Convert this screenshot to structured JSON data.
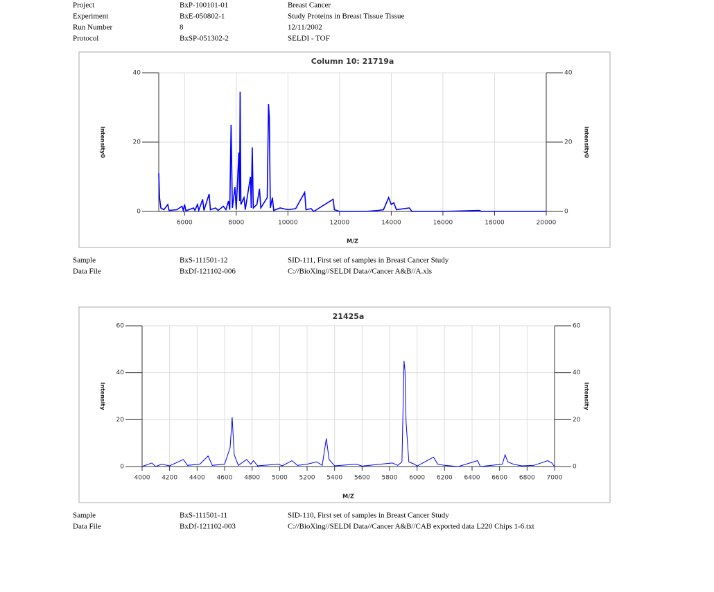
{
  "header": {
    "rows": [
      [
        "Project",
        "BxP-100101-01",
        "Breast Cancer"
      ],
      [
        "Experiment",
        "BxE-050802-1",
        "Study Proteins in Breast Tissue Tissue"
      ],
      [
        "Run Number",
        "8",
        "12/11/2002"
      ],
      [
        "Protocol",
        "BxSP-051302-2",
        "SELDI - TOF"
      ]
    ]
  },
  "chart_data": [
    {
      "type": "line",
      "title": "Column 10: 21719a",
      "x_label": "M/Z",
      "y_label": "Intensity0",
      "y2_label": "Intensity0",
      "x": [
        5000,
        5030,
        5080,
        5200,
        5350,
        5400,
        5700,
        5900,
        5950,
        6000,
        6050,
        6350,
        6400,
        6500,
        6550,
        6700,
        6750,
        6950,
        7000,
        7200,
        7300,
        7500,
        7600,
        7700,
        7750,
        7800,
        7850,
        7950,
        8000,
        8100,
        8130,
        8150,
        8180,
        8300,
        8350,
        8550,
        8580,
        8620,
        8660,
        8800,
        8900,
        8950,
        9200,
        9250,
        9280,
        9320,
        9400,
        9450,
        9700,
        10000,
        10300,
        10650,
        10700,
        10900,
        11000,
        11750,
        11800,
        12000,
        13000,
        13500,
        13700,
        13900,
        14000,
        14100,
        14200,
        14700,
        14800,
        16000,
        17400,
        17500,
        20000
      ],
      "series": [
        {
          "color": "#0000ff",
          "values": [
            11,
            4,
            1,
            0.5,
            2,
            0.3,
            0.5,
            1.5,
            0.3,
            2,
            0.2,
            1,
            0.3,
            2,
            0.3,
            3.5,
            0.3,
            5,
            0.5,
            1,
            0.3,
            1.5,
            0.5,
            3,
            0.5,
            25,
            1,
            7,
            0.5,
            17,
            3,
            34.5,
            2,
            4,
            0.5,
            10,
            1,
            18.5,
            1,
            2,
            6.5,
            1,
            4,
            31,
            27,
            1,
            4,
            0.3,
            1,
            0.5,
            0.8,
            5.5,
            0.5,
            0.8,
            0,
            3.5,
            0.5,
            0,
            0,
            0.3,
            0.5,
            4,
            2,
            2.5,
            0.5,
            1,
            0,
            0,
            0.3,
            0,
            0
          ]
        }
      ],
      "xlim": [
        5000,
        20000
      ],
      "xticks": [
        6000,
        8000,
        10000,
        12000,
        14000,
        16000,
        18000,
        20000
      ],
      "ylim": [
        0,
        40
      ],
      "yticks": [
        0,
        20,
        40
      ],
      "y2lim": [
        0,
        40
      ],
      "y2ticks": [
        0,
        20,
        40
      ],
      "grid": true
    },
    {
      "type": "line",
      "title": "21425a",
      "x_label": "M/Z",
      "y_label": "Intensity",
      "y2_label": "Intensity",
      "x": [
        4000,
        4070,
        4100,
        4140,
        4200,
        4300,
        4330,
        4420,
        4480,
        4510,
        4600,
        4640,
        4655,
        4670,
        4700,
        4760,
        4790,
        4810,
        4840,
        4990,
        5020,
        5090,
        5130,
        5200,
        5270,
        5310,
        5340,
        5360,
        5400,
        5560,
        5600,
        5820,
        5860,
        5890,
        5905,
        5912,
        5920,
        5940,
        5980,
        6000,
        6120,
        6150,
        6200,
        6300,
        6440,
        6460,
        6620,
        6640,
        6660,
        6700,
        6760,
        6850,
        6950,
        6980,
        7000
      ],
      "series": [
        {
          "color": "#0000ff",
          "values": [
            0,
            1.5,
            0,
            1,
            0.3,
            3,
            0.5,
            1,
            4.5,
            0.5,
            1,
            8,
            21,
            5,
            0.5,
            3,
            1,
            2.5,
            0.3,
            1,
            0.3,
            2.5,
            0.5,
            1,
            2,
            0.5,
            12,
            3,
            0.3,
            1,
            0.2,
            1.5,
            0.5,
            2,
            45,
            41,
            19,
            2,
            1,
            0.2,
            4,
            1,
            0.5,
            0,
            2.5,
            0,
            1,
            5,
            2,
            1,
            0.3,
            0.5,
            2.5,
            1.5,
            0
          ]
        }
      ],
      "xlim": [
        4000,
        7000
      ],
      "xticks": [
        4000,
        4200,
        4400,
        4600,
        4800,
        5000,
        5200,
        5400,
        5600,
        5800,
        6000,
        6200,
        6400,
        6600,
        6800,
        7000
      ],
      "ylim": [
        0,
        60
      ],
      "yticks": [
        0,
        20,
        40,
        60
      ],
      "y2lim": [
        0,
        60
      ],
      "y2ticks": [
        0,
        20,
        40,
        60
      ],
      "grid": true
    }
  ],
  "details": [
    {
      "rows": [
        [
          "Sample",
          "BxS-111501-12",
          "SID-111, First set of samples in Breast Cancer Study"
        ],
        [
          "Data File",
          "BxDf-121102-006",
          "C://BioXing//SELDI Data//Cancer A&B//A.xls"
        ]
      ]
    },
    {
      "rows": [
        [
          "Sample",
          "BxS-111501-11",
          "SID-110, First set of samples in Breast Cancer Study"
        ],
        [
          "Data File",
          "BxDf-121102-003",
          "C://BioXing//SELDI Data//Cancer A&B//CAB exported data L220 Chips 1-6.txt"
        ]
      ]
    }
  ]
}
